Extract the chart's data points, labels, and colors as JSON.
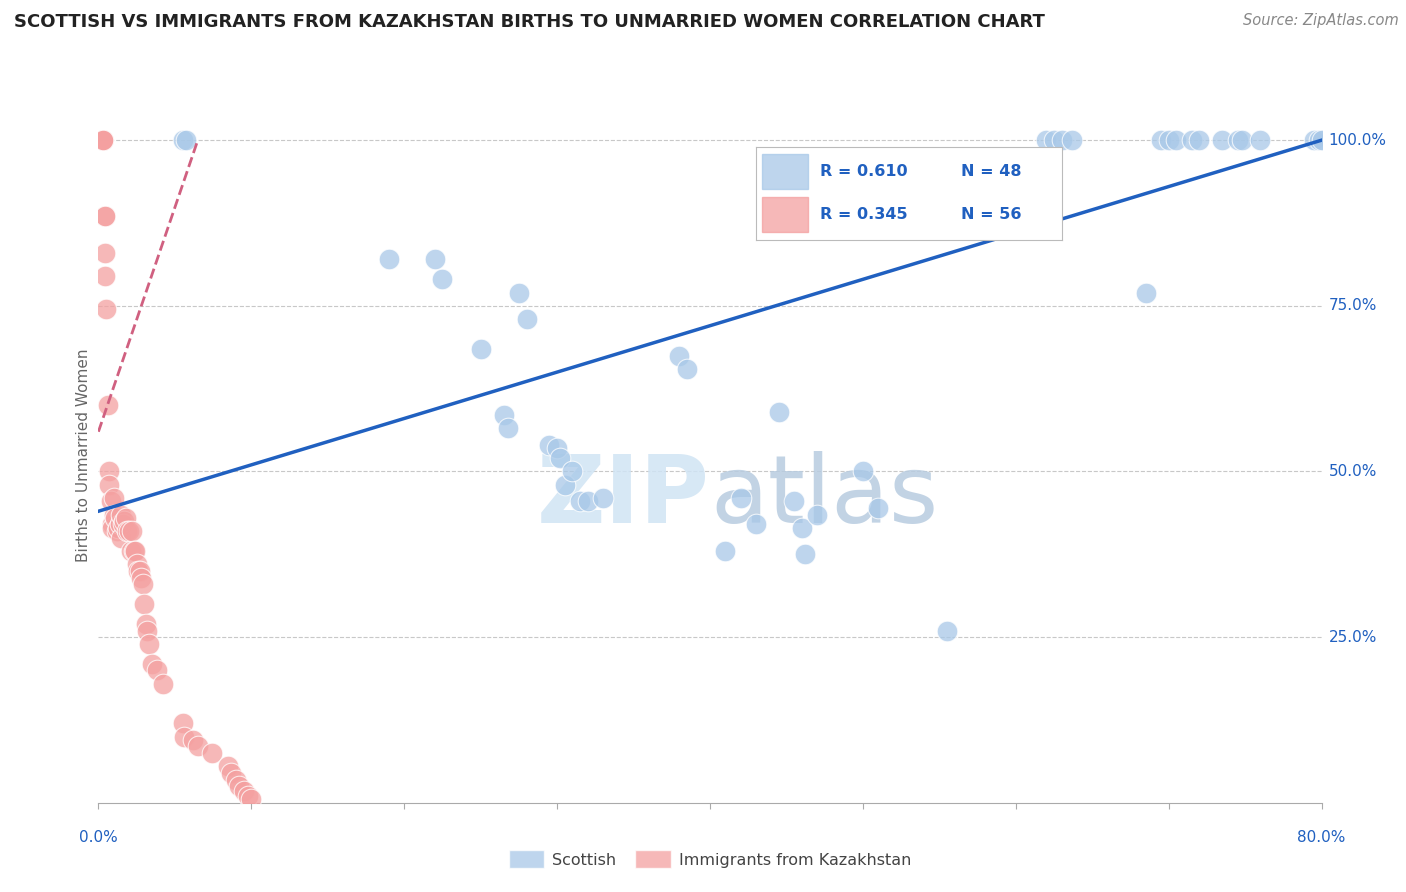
{
  "title": "SCOTTISH VS IMMIGRANTS FROM KAZAKHSTAN BIRTHS TO UNMARRIED WOMEN CORRELATION CHART",
  "source": "Source: ZipAtlas.com",
  "ylabel": "Births to Unmarried Women",
  "ylabel_right_labels": [
    "100.0%",
    "75.0%",
    "50.0%",
    "25.0%"
  ],
  "ylabel_right_values": [
    1.0,
    0.75,
    0.5,
    0.25
  ],
  "legend_blue_r": "R = 0.610",
  "legend_blue_n": "N = 48",
  "legend_pink_r": "R = 0.345",
  "legend_pink_n": "N = 56",
  "blue_color": "#a8c8e8",
  "pink_color": "#f4a0a0",
  "line_blue": "#2060c0",
  "line_pink": "#d06080",
  "watermark_color": "#d0e4f4",
  "xmin": 0.0,
  "xmax": 0.8,
  "ymin": 0.0,
  "ymax": 1.05,
  "blue_x": [
    0.055,
    0.057,
    0.19,
    0.22,
    0.225,
    0.25,
    0.265,
    0.268,
    0.275,
    0.28,
    0.295,
    0.3,
    0.302,
    0.305,
    0.31,
    0.315,
    0.32,
    0.33,
    0.38,
    0.385,
    0.41,
    0.42,
    0.43,
    0.445,
    0.455,
    0.46,
    0.462,
    0.47,
    0.5,
    0.51,
    0.555,
    0.62,
    0.625,
    0.63,
    0.637,
    0.685,
    0.695,
    0.7,
    0.705,
    0.715,
    0.72,
    0.735,
    0.745,
    0.748,
    0.76,
    0.795,
    0.798,
    0.8
  ],
  "blue_y": [
    1.0,
    1.0,
    0.82,
    0.82,
    0.79,
    0.685,
    0.585,
    0.565,
    0.77,
    0.73,
    0.54,
    0.535,
    0.52,
    0.48,
    0.5,
    0.455,
    0.455,
    0.46,
    0.675,
    0.655,
    0.38,
    0.46,
    0.42,
    0.59,
    0.455,
    0.415,
    0.375,
    0.435,
    0.5,
    0.445,
    0.26,
    1.0,
    1.0,
    1.0,
    1.0,
    0.77,
    1.0,
    1.0,
    1.0,
    1.0,
    1.0,
    1.0,
    1.0,
    1.0,
    1.0,
    1.0,
    1.0,
    1.0
  ],
  "pink_x": [
    0.003,
    0.003,
    0.003,
    0.003,
    0.004,
    0.004,
    0.004,
    0.004,
    0.005,
    0.006,
    0.007,
    0.007,
    0.008,
    0.009,
    0.009,
    0.01,
    0.01,
    0.011,
    0.012,
    0.013,
    0.014,
    0.015,
    0.015,
    0.016,
    0.017,
    0.018,
    0.019,
    0.02,
    0.021,
    0.022,
    0.023,
    0.024,
    0.025,
    0.026,
    0.027,
    0.028,
    0.029,
    0.03,
    0.031,
    0.032,
    0.033,
    0.035,
    0.038,
    0.042,
    0.055,
    0.056,
    0.062,
    0.065,
    0.074,
    0.085,
    0.087,
    0.09,
    0.092,
    0.095,
    0.098,
    0.1
  ],
  "pink_y": [
    1.0,
    1.0,
    1.0,
    1.0,
    0.885,
    0.885,
    0.83,
    0.795,
    0.745,
    0.6,
    0.5,
    0.48,
    0.455,
    0.42,
    0.415,
    0.46,
    0.435,
    0.43,
    0.41,
    0.415,
    0.42,
    0.435,
    0.4,
    0.42,
    0.425,
    0.43,
    0.41,
    0.41,
    0.38,
    0.41,
    0.38,
    0.38,
    0.36,
    0.35,
    0.35,
    0.34,
    0.33,
    0.3,
    0.27,
    0.26,
    0.24,
    0.21,
    0.2,
    0.18,
    0.12,
    0.1,
    0.095,
    0.085,
    0.075,
    0.055,
    0.045,
    0.035,
    0.025,
    0.018,
    0.01,
    0.005
  ],
  "blue_line_x0": 0.0,
  "blue_line_y0": 0.44,
  "blue_line_x1": 0.8,
  "blue_line_y1": 1.0,
  "pink_line_x0": 0.0,
  "pink_line_y0": 0.56,
  "pink_line_x1": 0.065,
  "pink_line_y1": 1.0
}
